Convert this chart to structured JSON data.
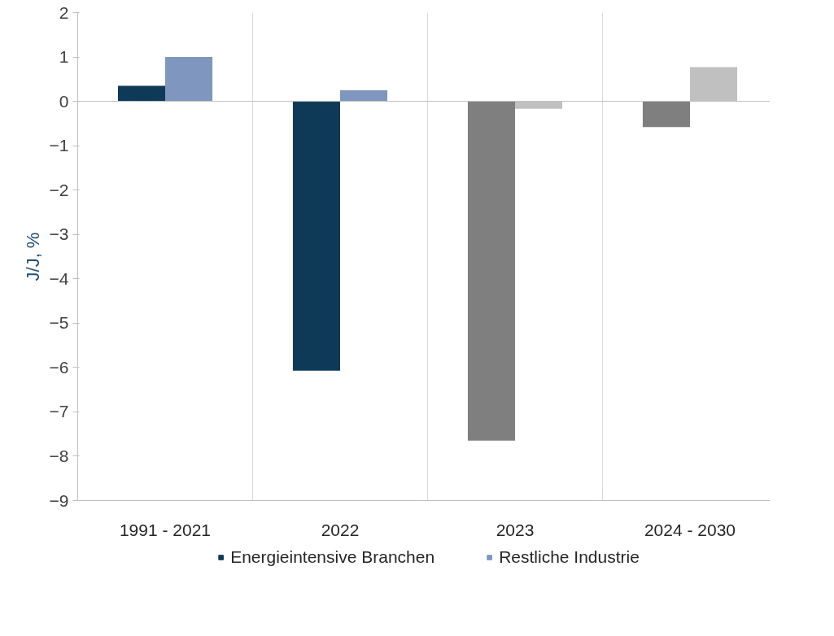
{
  "chart_data": {
    "type": "bar",
    "ylabel": "J/J, %",
    "categories": [
      "1991 - 2021",
      "2022",
      "2023",
      "2024 - 2030"
    ],
    "series": [
      {
        "name": "Energieintensive Branchen",
        "color": "#0f3a57",
        "colors": [
          "#0f3a57",
          "#0f3a57",
          "#7f7f7f",
          "#7f7f7f"
        ],
        "values": [
          0.35,
          -6.07,
          -7.65,
          -0.58
        ]
      },
      {
        "name": "Restliche Industrie",
        "color": "#7f96bf",
        "colors": [
          "#7f96bf",
          "#7f96bf",
          "#c0c0c0",
          "#c0c0c0"
        ],
        "values": [
          1.0,
          0.25,
          -0.17,
          0.77
        ]
      }
    ],
    "ylim": [
      -9,
      2
    ],
    "yticks": [
      -9,
      -8,
      -7,
      -6,
      -5,
      -4,
      -3,
      -2,
      -1,
      0,
      1,
      2
    ],
    "grid": "x",
    "legend": "bottom"
  }
}
